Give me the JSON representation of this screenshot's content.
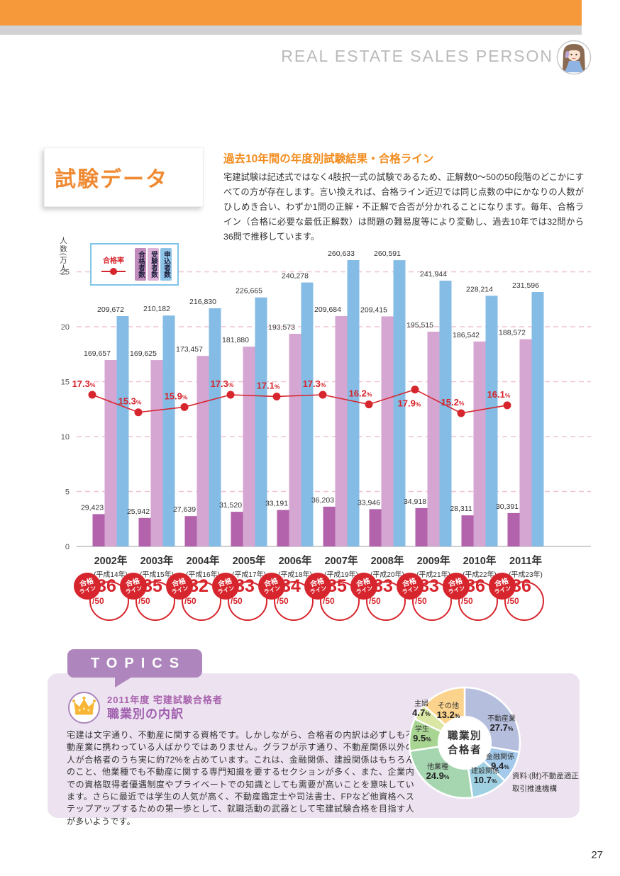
{
  "page": {
    "number": "27"
  },
  "header": {
    "brand": "REAL ESTATE SALES PERSON"
  },
  "intro": {
    "page_title": "試験データ",
    "heading": "過去10年間の年度別試験結果・合格ライン",
    "body": "宅建試験は記述式ではなく4肢択一式の試験であるため、正解数0〜50の50段階のどこかにすべての方が存在します。言い換えれば、合格ライン近辺では同じ点数の中にかなりの人数がひしめき合い、わずか1問の正解・不正解で合否が分かれることになります。毎年、合格ライン（合格に必要な最低正解数）は問題の難易度等により変動し、過去10年では32問から36問で推移しています。"
  },
  "colors": {
    "accent_orange": "#f5993b",
    "top_gray": "#d2d2d4",
    "brand_gray": "#b9babc",
    "red": "#d7252d",
    "grid_pink": "#efc3d3",
    "bar_passers": "#b263ab",
    "bar_examinees": "#d5a6d2",
    "bar_applicants": "#85bce5",
    "topics_purple": "#ae86bd",
    "panel_lavender": "#ede3f0",
    "purple_text": "#a05fae",
    "text": "#333333"
  },
  "chart_data": [
    {
      "type": "bar",
      "title": "過去10年間の年度別試験結果・合格ライン",
      "ylabel": "人数(万人)",
      "ylim": [
        0,
        26.5
      ],
      "yticks": [
        0,
        5,
        10,
        15,
        20,
        25
      ],
      "grid": "dashed",
      "legend": [
        {
          "key": "pass_rate",
          "label": "合格率",
          "color": "#d7252d",
          "style": "line"
        },
        {
          "key": "passers",
          "label": "合格者数",
          "color": "#b263ab",
          "style": "bar"
        },
        {
          "key": "examinees",
          "label": "受験者数",
          "color": "#d5a6d2",
          "style": "bar"
        },
        {
          "key": "applicants",
          "label": "申込者数",
          "color": "#85bce5",
          "style": "bar"
        }
      ],
      "pass_line_badge": {
        "line1": "合格",
        "line2": "ライン",
        "denominator": "/50"
      },
      "years": [
        {
          "year": "2002年",
          "era": "(平成14年)",
          "applicants": 209672,
          "examinees": 169657,
          "passers": 29423,
          "pass_rate": 17.3,
          "pass_line": 36,
          "rate_label": "above"
        },
        {
          "year": "2003年",
          "era": "(平成15年)",
          "applicants": 210182,
          "examinees": 169625,
          "passers": 25942,
          "pass_rate": 15.3,
          "pass_line": 35,
          "rate_label": "above"
        },
        {
          "year": "2004年",
          "era": "(平成16年)",
          "applicants": 216830,
          "examinees": 173457,
          "passers": 27639,
          "pass_rate": 15.9,
          "pass_line": 32,
          "rate_label": "above"
        },
        {
          "year": "2005年",
          "era": "(平成17年)",
          "applicants": 226665,
          "examinees": 181880,
          "passers": 31520,
          "pass_rate": 17.3,
          "pass_line": 33,
          "rate_label": "above"
        },
        {
          "year": "2006年",
          "era": "(平成18年)",
          "applicants": 240278,
          "examinees": 193573,
          "passers": 33191,
          "pass_rate": 17.1,
          "pass_line": 34,
          "rate_label": "above"
        },
        {
          "year": "2007年",
          "era": "(平成19年)",
          "applicants": 260633,
          "examinees": 209684,
          "passers": 36203,
          "pass_rate": 17.3,
          "pass_line": 35,
          "rate_label": "above"
        },
        {
          "year": "2008年",
          "era": "(平成20年)",
          "applicants": 260591,
          "examinees": 209415,
          "passers": 33946,
          "pass_rate": 16.2,
          "pass_line": 33,
          "rate_label": "above"
        },
        {
          "year": "2009年",
          "era": "(平成21年)",
          "applicants": 241944,
          "examinees": 195515,
          "passers": 34918,
          "pass_rate": 17.9,
          "pass_line": 33,
          "rate_label": "below"
        },
        {
          "year": "2010年",
          "era": "(平成22年)",
          "applicants": 228214,
          "examinees": 186542,
          "passers": 28311,
          "pass_rate": 15.2,
          "pass_line": 36,
          "rate_label": "above"
        },
        {
          "year": "2011年",
          "era": "(平成23年)",
          "applicants": 231596,
          "examinees": 188572,
          "passers": 30391,
          "pass_rate": 16.1,
          "pass_line": 36,
          "rate_label": "above"
        }
      ]
    },
    {
      "type": "pie",
      "title": "職業別合格者",
      "center_label": [
        "職業別",
        "合格者"
      ],
      "slices": [
        {
          "label": "不動産業",
          "value": 27.7,
          "color": "#b5bedd",
          "label_offset": [
            52,
            -26
          ]
        },
        {
          "label": "金融関係",
          "value": 9.4,
          "color": "#a4c9ea",
          "label_offset": [
            50,
            28
          ]
        },
        {
          "label": "建設関係",
          "value": 10.7,
          "color": "#9fd0e2",
          "label_offset": [
            29,
            48
          ]
        },
        {
          "label": "他業種",
          "value": 24.9,
          "color": "#a5d6b0",
          "label_offset": [
            -38,
            42
          ]
        },
        {
          "label": "学生",
          "value": 9.5,
          "color": "#a9d593",
          "label_offset": [
            -60,
            -11
          ]
        },
        {
          "label": "主婦",
          "value": 4.7,
          "color": "#dae7a4",
          "label_offset": [
            -61,
            -47
          ]
        },
        {
          "label": "その他",
          "value": 13.2,
          "color": "#fbd38d",
          "label_offset": [
            -23,
            -44
          ]
        }
      ],
      "source": [
        "資料:(財)不動産適正",
        "取引推進機構"
      ]
    }
  ],
  "topics": {
    "badge": "TOPICS",
    "subtitle": "2011年度 宅建試験合格者",
    "title": "職業別の内訳",
    "body": "宅建は文字通り、不動産に関する資格です。しかしながら、合格者の内訳は必ずしも不動産業に携わっている人ばかりではありません。グラフが示す通り、不動産関係以外の人が合格者のうち実に約72%を占めています。これは、金融関係、建設関係はもちろんのこと、他業種でも不動産に関する専門知識を要するセクションが多く、また、企業内での資格取得者優遇制度やプライベートでの知識としても需要が高いことを意味しています。さらに最近では学生の人気が高く、不動産鑑定士や司法書士、FPなど他資格へステップアップするための第一歩として、就職活動の武器として宅建試験合格を目指す人が多いようです。"
  }
}
